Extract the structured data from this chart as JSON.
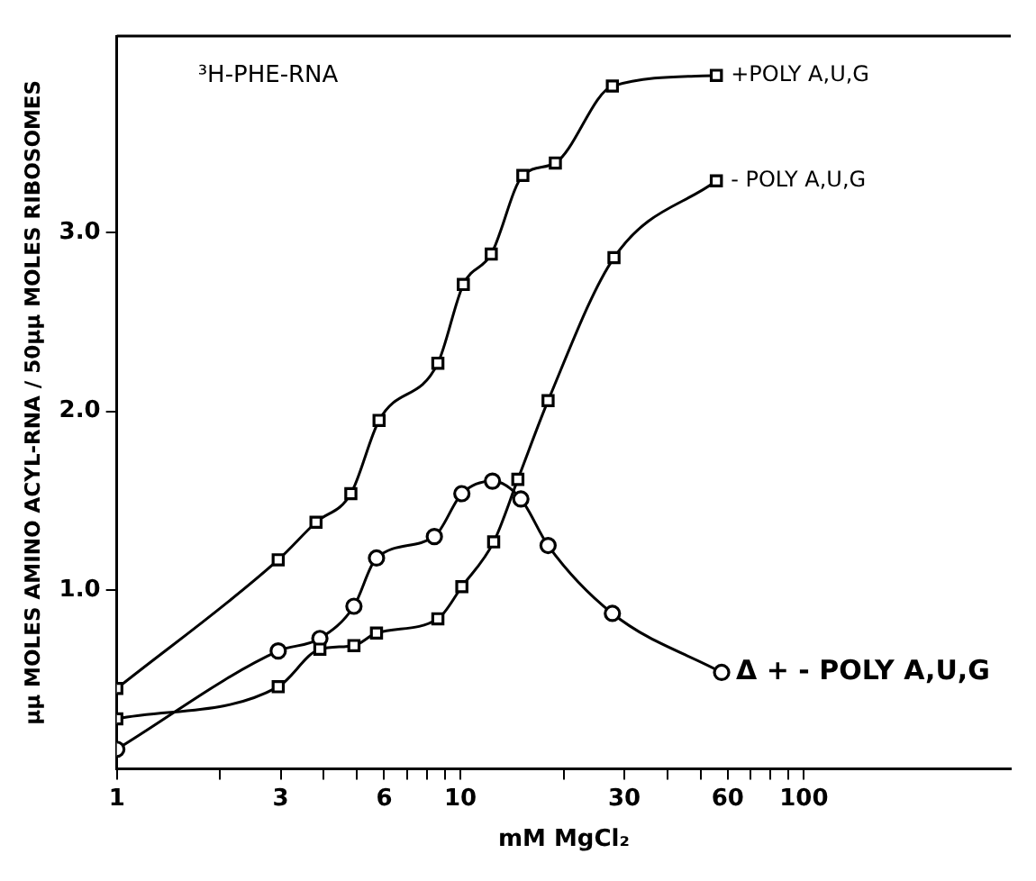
{
  "chart_data": {
    "type": "line",
    "xlabel": "mM MgCl₂",
    "ylabel": "μμ MOLES AMINO ACYL-RNA / 50μμ MOLES RIBOSOMES",
    "annotations": [
      "³H-PHE-RNA"
    ],
    "log": "x",
    "grid": false,
    "legend": false,
    "xlim": [
      1,
      400
    ],
    "ylim": [
      0,
      4.1
    ],
    "xticks": [
      1,
      {
        "value": 2,
        "label": null
      },
      3,
      {
        "value": 4,
        "label": null
      },
      {
        "value": 5,
        "label": null
      },
      6,
      {
        "value": 7,
        "label": null
      },
      {
        "value": 8,
        "label": null
      },
      {
        "value": 9,
        "label": null
      },
      10,
      {
        "value": 20,
        "label": null
      },
      30,
      {
        "value": 40,
        "label": null
      },
      {
        "value": 50,
        "label": null
      },
      60,
      {
        "value": 70,
        "label": null
      },
      {
        "value": 80,
        "label": null
      },
      {
        "value": 90,
        "label": null
      },
      100
    ],
    "yticks": [
      {
        "value": 1,
        "label": "1.0"
      },
      {
        "value": 2,
        "label": "2.0"
      },
      {
        "value": 3,
        "label": "3.0"
      }
    ],
    "series": [
      {
        "name": "+POLY A,U,G",
        "color": "#000000",
        "marker": "square",
        "x": [
          1,
          2.95,
          3.8,
          4.8,
          5.8,
          8.6,
          10.2,
          12.3,
          15.2,
          18.9,
          27.7,
          55.6
        ],
        "values": [
          0.45,
          1.17,
          1.38,
          1.54,
          1.95,
          2.27,
          2.71,
          2.88,
          3.32,
          3.39,
          3.82,
          3.88
        ]
      },
      {
        "name": "- POLY A,U,G",
        "color": "#000000",
        "marker": "square",
        "x": [
          1,
          2.95,
          3.9,
          4.9,
          5.7,
          8.6,
          10.1,
          12.5,
          14.7,
          18,
          28,
          55.6
        ],
        "values": [
          0.28,
          0.46,
          0.67,
          0.69,
          0.76,
          0.84,
          1.02,
          1.27,
          1.62,
          2.06,
          2.86,
          3.29
        ]
      },
      {
        "name": "Δ + - POLY A,U,G",
        "color": "#000000",
        "marker": "circle",
        "x": [
          1,
          2.95,
          3.9,
          4.9,
          5.7,
          8.4,
          10.1,
          12.4,
          15,
          18,
          27.7,
          57.6
        ],
        "values": [
          0.11,
          0.66,
          0.73,
          0.91,
          1.18,
          1.3,
          1.54,
          1.61,
          1.51,
          1.25,
          0.87,
          0.54
        ]
      }
    ]
  }
}
